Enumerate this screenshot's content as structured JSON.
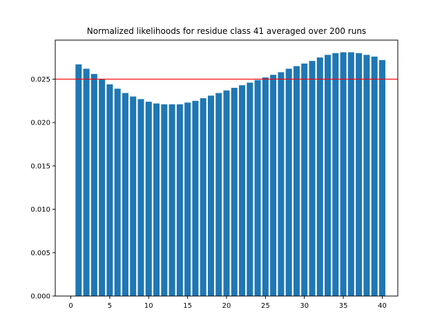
{
  "chart_data": {
    "type": "bar",
    "title": "Normalized likelihoods for residue class 41 averaged over 200 runs",
    "xlabel": "",
    "ylabel": "",
    "xlim": [
      -2.0,
      42.0
    ],
    "ylim": [
      0.0,
      0.0295
    ],
    "xticks": [
      0,
      5,
      10,
      15,
      20,
      25,
      30,
      35,
      40
    ],
    "xtick_labels": [
      "0",
      "5",
      "10",
      "15",
      "20",
      "25",
      "30",
      "35",
      "40"
    ],
    "yticks": [
      0.0,
      0.005,
      0.01,
      0.015,
      0.02,
      0.025
    ],
    "ytick_labels": [
      "0.000",
      "0.005",
      "0.010",
      "0.015",
      "0.020",
      "0.025"
    ],
    "bar_width": 0.8,
    "x": [
      1,
      2,
      3,
      4,
      5,
      6,
      7,
      8,
      9,
      10,
      11,
      12,
      13,
      14,
      15,
      16,
      17,
      18,
      19,
      20,
      21,
      22,
      23,
      24,
      25,
      26,
      27,
      28,
      29,
      30,
      31,
      32,
      33,
      34,
      35,
      36,
      37,
      38,
      39,
      40
    ],
    "values": [
      0.0267,
      0.0262,
      0.0256,
      0.025,
      0.0244,
      0.0239,
      0.0234,
      0.023,
      0.0227,
      0.0224,
      0.0222,
      0.0221,
      0.0221,
      0.0221,
      0.0223,
      0.0225,
      0.0228,
      0.0231,
      0.0234,
      0.0237,
      0.024,
      0.0243,
      0.0246,
      0.0249,
      0.0252,
      0.0255,
      0.0258,
      0.0262,
      0.0265,
      0.0268,
      0.0271,
      0.0275,
      0.0278,
      0.028,
      0.0281,
      0.0281,
      0.028,
      0.0278,
      0.0276,
      0.0272
    ],
    "reference_line": {
      "y": 0.025,
      "color": "#ff0000"
    },
    "bar_color": "#1f77b4",
    "grid": false,
    "legend": "none"
  }
}
